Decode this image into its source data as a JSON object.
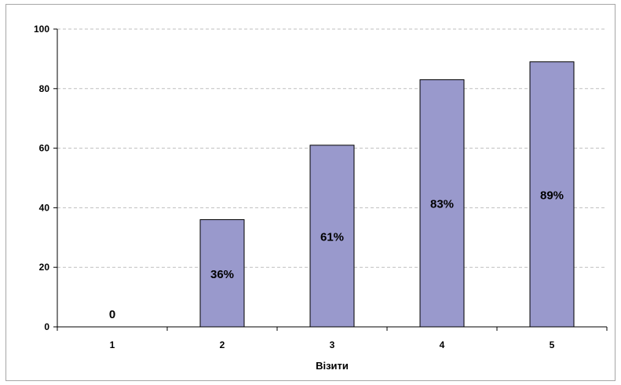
{
  "chart_data": {
    "type": "bar",
    "title": "",
    "xlabel": "Візити",
    "ylabel": "",
    "categories": [
      "1",
      "2",
      "3",
      "4",
      "5"
    ],
    "values": [
      0,
      36,
      61,
      83,
      89
    ],
    "data_labels": [
      "0",
      "36%",
      "61%",
      "83%",
      "89%"
    ],
    "ylim": [
      0,
      100
    ],
    "yticks": [
      "0",
      "20",
      "40",
      "60",
      "80",
      "100"
    ],
    "grid": "horizontal dashed",
    "bar_color": "#9999cc",
    "bar_border_color": "#000000",
    "gridline_color": "#bfbfbf"
  }
}
